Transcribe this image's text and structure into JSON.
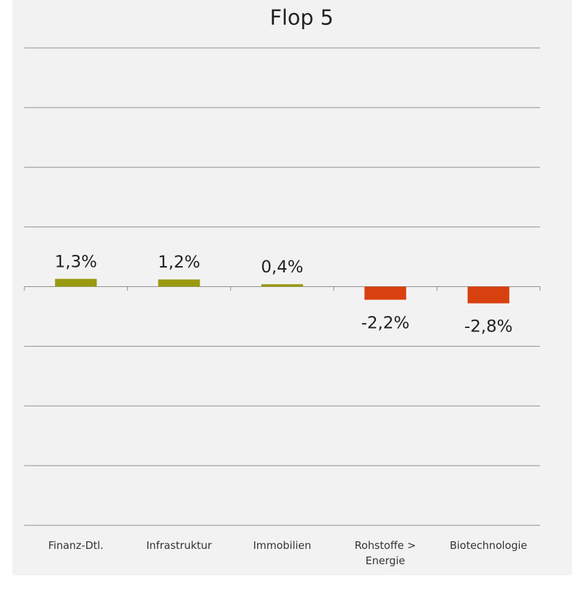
{
  "chart_data": {
    "type": "bar",
    "title": "Flop 5",
    "categories": [
      "Finanz-Dtl.",
      "Infrastruktur",
      "Immobilien",
      "Rohstoffe > Energie",
      "Biotechnologie"
    ],
    "values": [
      1.3,
      1.2,
      0.4,
      -2.2,
      -2.8
    ],
    "value_labels": [
      "1,3%",
      "1,2%",
      "0,4%",
      "-2,2%",
      "-2,8%"
    ],
    "colors": [
      "#9a9a12",
      "#9a9a12",
      "#9a9a12",
      "#d9400f",
      "#d9400f"
    ],
    "ylim": [
      -40,
      40
    ],
    "yticks": [
      -40,
      -30,
      -20,
      -10,
      0,
      10,
      20,
      30,
      40
    ],
    "grid": true
  }
}
